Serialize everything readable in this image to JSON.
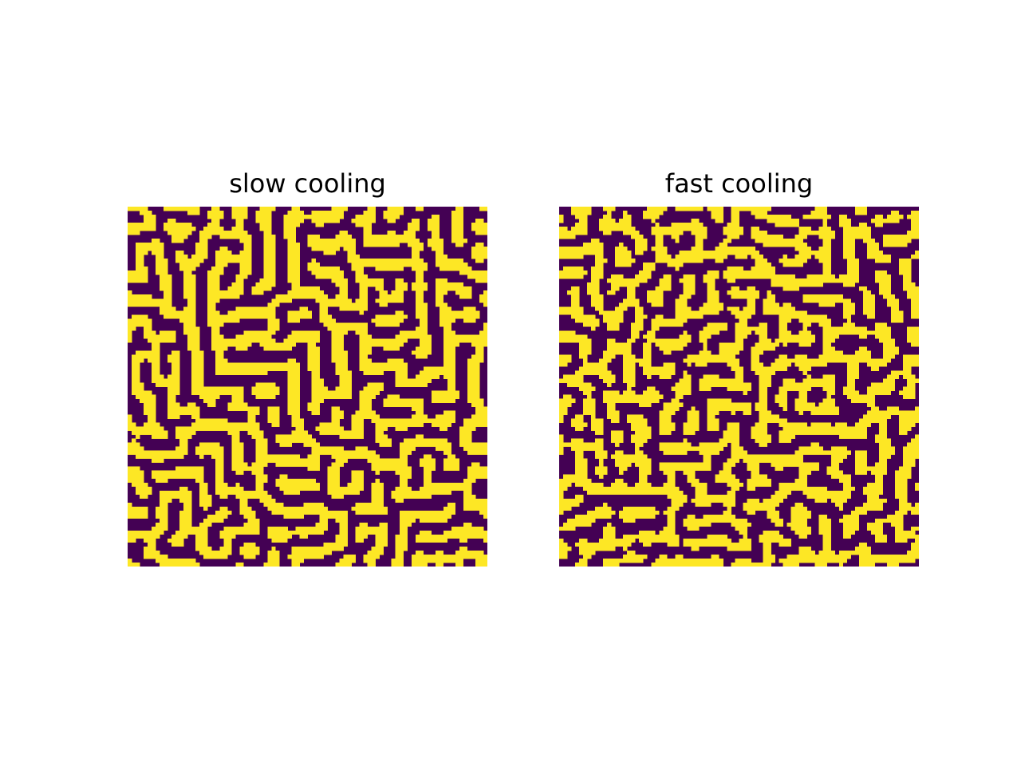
{
  "chart_data": [
    {
      "type": "heatmap",
      "title": "slow cooling",
      "grid_size": 90,
      "colors": {
        "low": "#440154",
        "high": "#fde725"
      },
      "pattern": "labyrinth",
      "seed": 7,
      "smoothing_passes": 9,
      "axes_visible": false
    },
    {
      "type": "heatmap",
      "title": "fast cooling",
      "grid_size": 90,
      "colors": {
        "low": "#440154",
        "high": "#fde725"
      },
      "pattern": "labyrinth",
      "seed": 23,
      "smoothing_passes": 3,
      "axes_visible": false
    }
  ]
}
